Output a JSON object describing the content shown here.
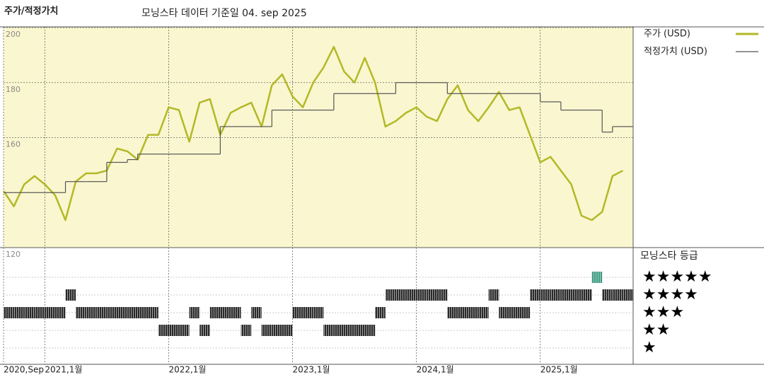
{
  "chart_data": [
    {
      "type": "line",
      "title": "주가/적정가치",
      "subtitle": "모닝스타 데이터 기준일 04. sep 2025",
      "x": [
        "2020-09",
        "2020-10",
        "2020-11",
        "2020-12",
        "2021-01",
        "2021-02",
        "2021-03",
        "2021-04",
        "2021-05",
        "2021-06",
        "2021-07",
        "2021-08",
        "2021-09",
        "2021-10",
        "2021-11",
        "2021-12",
        "2022-01",
        "2022-02",
        "2022-03",
        "2022-04",
        "2022-05",
        "2022-06",
        "2022-07",
        "2022-08",
        "2022-09",
        "2022-10",
        "2022-11",
        "2022-12",
        "2023-01",
        "2023-02",
        "2023-03",
        "2023-04",
        "2023-05",
        "2023-06",
        "2023-07",
        "2023-08",
        "2023-09",
        "2023-10",
        "2023-11",
        "2023-12",
        "2024-01",
        "2024-02",
        "2024-03",
        "2024-04",
        "2024-05",
        "2024-06",
        "2024-07",
        "2024-08",
        "2024-09",
        "2024-10",
        "2024-11",
        "2024-12",
        "2025-01",
        "2025-02",
        "2025-03",
        "2025-04",
        "2025-05",
        "2025-06",
        "2025-07",
        "2025-08",
        "2025-09"
      ],
      "series": [
        {
          "name": "주가 (USD)",
          "color": "#b3b827",
          "style": "line",
          "values": [
            140.6,
            135,
            143,
            146,
            143,
            139,
            130,
            144,
            147,
            147,
            148,
            156,
            155,
            152,
            161,
            161,
            171,
            170,
            158.5,
            172.7,
            174,
            161,
            169,
            171,
            172.7,
            164,
            179,
            183,
            175,
            171,
            180,
            185.5,
            193,
            184,
            180,
            189,
            180,
            164,
            166,
            169,
            171,
            167.6,
            166,
            174,
            179,
            170,
            166,
            171,
            176.6,
            170,
            171,
            161,
            151,
            153,
            148,
            143,
            131.6,
            130,
            133,
            146,
            148
          ]
        },
        {
          "name": "적정가치 (USD)",
          "color": "#555555",
          "style": "step",
          "values": [
            140,
            140,
            140,
            140,
            140,
            140,
            144,
            144,
            144,
            144,
            151,
            151,
            152,
            154,
            154,
            154,
            154,
            154,
            154,
            154,
            154,
            164,
            164,
            164,
            164,
            164,
            170,
            170,
            170,
            170,
            170,
            170,
            176,
            176,
            176,
            176,
            176,
            176,
            180,
            180,
            180,
            180,
            180,
            176,
            176,
            176,
            176,
            176,
            176,
            176,
            176,
            176,
            173,
            173,
            170,
            170,
            170,
            170,
            162,
            164,
            164
          ]
        }
      ],
      "xlim": [
        "2020-09",
        "2025-10"
      ],
      "xticks": [
        {
          "value": "2020-09",
          "label": "2020,Sep"
        },
        {
          "value": "2021-01",
          "label": "2021,1월"
        },
        {
          "value": "2022-01",
          "label": "2022,1월"
        },
        {
          "value": "2023-01",
          "label": "2023,1월"
        },
        {
          "value": "2024-01",
          "label": "2024,1월"
        },
        {
          "value": "2025-01",
          "label": "2025,1월"
        }
      ],
      "ylim": [
        120,
        200
      ],
      "yticks": [
        120,
        160,
        180,
        200
      ],
      "grid": true,
      "background": "#faf6cf"
    },
    {
      "type": "rating",
      "title": "모닝스타 등급",
      "values": [
        3,
        3,
        3,
        3,
        3,
        3,
        4,
        3,
        3,
        3,
        3,
        3,
        3,
        3,
        3,
        2,
        2,
        2,
        3,
        2,
        3,
        3,
        3,
        2,
        3,
        2,
        2,
        2,
        3,
        3,
        3,
        2,
        2,
        2,
        2,
        2,
        3,
        4,
        4,
        4,
        4,
        4,
        4,
        3,
        3,
        3,
        3,
        4,
        3,
        3,
        3,
        4,
        4,
        4,
        4,
        4,
        4,
        5,
        4,
        4,
        4
      ],
      "ylim": [
        0,
        6
      ],
      "yticks": [
        {
          "value": 5,
          "label": "★★★★★"
        },
        {
          "value": 4,
          "label": "★★★★"
        },
        {
          "value": 3,
          "label": "★★★"
        },
        {
          "value": 2,
          "label": "★★"
        },
        {
          "value": 1,
          "label": "★"
        }
      ],
      "color": "#2a2a2a",
      "top_color": "#3d9a80",
      "grid": true
    }
  ]
}
